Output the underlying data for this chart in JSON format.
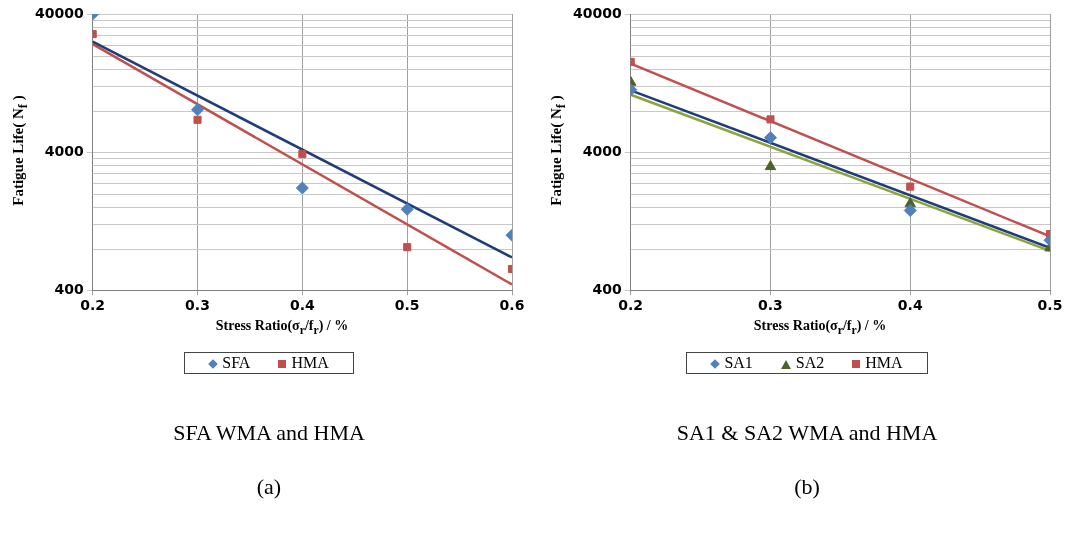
{
  "chart_data": [
    {
      "type": "scatter",
      "xlabel": "Stress Ratio(σ$_{r}$/f$_{r}$)  /  %",
      "ylabel": "Fatigue Life( N$_{f}$ )",
      "log": "y",
      "grid": true,
      "legend": "bottom",
      "xlim": [
        0.2,
        0.6
      ],
      "xticks": [
        0.2,
        0.3,
        0.4,
        0.5,
        0.6
      ],
      "ylim": [
        400,
        40000
      ],
      "yticks": [
        400,
        4000,
        40000
      ],
      "annotations": [
        "SFA WMA and HMA",
        "(a)"
      ],
      "series": [
        {
          "name": "SFA",
          "color": "#4f81bd",
          "marker": "diamond",
          "x": [
            0.2,
            0.3,
            0.4,
            0.5,
            0.6
          ],
          "values": [
            40000,
            8100,
            2200,
            1540,
            1000
          ]
        },
        {
          "name": "HMA",
          "color": "#c0504d",
          "marker": "square",
          "x": [
            0.2,
            0.3,
            0.4,
            0.5,
            0.6
          ],
          "values": [
            28600,
            6850,
            3870,
            820,
            570
          ]
        },
        {
          "type": "line",
          "color": "#1f3d7a",
          "marker": "none",
          "line_style": "solid",
          "x": [
            0.2,
            0.6
          ],
          "values": [
            25200,
            690
          ]
        },
        {
          "type": "line",
          "color": "#c0504d",
          "marker": "none",
          "line_style": "solid",
          "x": [
            0.2,
            0.6
          ],
          "values": [
            24200,
            440
          ]
        }
      ]
    },
    {
      "type": "scatter",
      "xlabel": "Stress Ratio(σ$_{r}$/f$_{r}$)  /  %",
      "ylabel": "Fatigue Life( N$_{f}$ )",
      "log": "y",
      "grid": true,
      "legend": "bottom",
      "xlim": [
        0.2,
        0.5
      ],
      "xticks": [
        0.2,
        0.3,
        0.4,
        0.5
      ],
      "ylim": [
        400,
        40000
      ],
      "yticks": [
        400,
        4000,
        40000
      ],
      "annotations": [
        "SA1 & SA2 WMA and HMA",
        "(b)"
      ],
      "series": [
        {
          "name": "SA1",
          "color": "#4f81bd",
          "marker": "diamond",
          "x": [
            0.2,
            0.3,
            0.4,
            0.5
          ],
          "values": [
            11300,
            5090,
            1510,
            920
          ]
        },
        {
          "name": "SA2",
          "color": "#4f6228",
          "marker": "triangle",
          "x": [
            0.2,
            0.3,
            0.4,
            0.5
          ],
          "values": [
            12800,
            3140,
            1690,
            810
          ]
        },
        {
          "name": "HMA",
          "color": "#c0504d",
          "marker": "square",
          "x": [
            0.2,
            0.3,
            0.4,
            0.5
          ],
          "values": [
            18000,
            6900,
            2250,
            1020
          ]
        },
        {
          "type": "line",
          "color": "#1f3d7a",
          "marker": "none",
          "line_style": "solid",
          "x": [
            0.2,
            0.5
          ],
          "values": [
            11200,
            810
          ]
        },
        {
          "type": "line",
          "color": "#8aa53a",
          "marker": "none",
          "line_style": "solid",
          "x": [
            0.2,
            0.5
          ],
          "values": [
            10400,
            770
          ]
        },
        {
          "type": "line",
          "color": "#c0504d",
          "marker": "none",
          "line_style": "solid",
          "x": [
            0.2,
            0.5
          ],
          "values": [
            17500,
            980
          ]
        }
      ]
    }
  ]
}
